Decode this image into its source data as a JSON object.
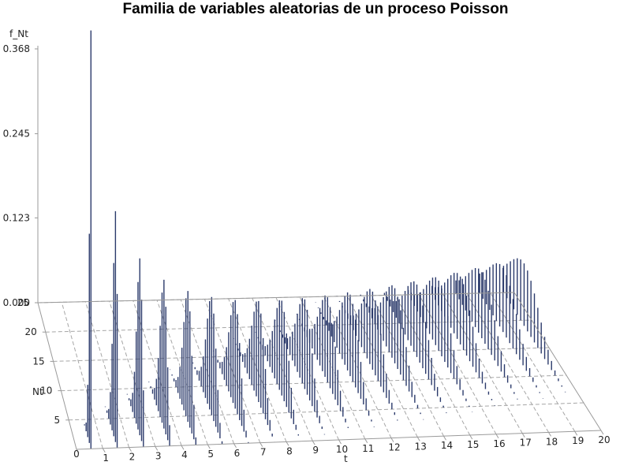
{
  "chart_data": {
    "type": "bar3d",
    "title": "Familia de variables aleatorias de un proceso Poisson",
    "xlabel": "t",
    "ylabel": "Nt",
    "zlabel": "f_Nt",
    "distribution": "Poisson",
    "t_range": [
      0,
      20
    ],
    "nt_range": [
      0,
      25
    ],
    "z_range": [
      0,
      0.368
    ],
    "x_ticks": [
      "0",
      "1",
      "2",
      "3",
      "4",
      "5",
      "6",
      "7",
      "8",
      "9",
      "10",
      "11",
      "12",
      "13",
      "14",
      "15",
      "16",
      "17",
      "18",
      "19",
      "20"
    ],
    "y_ticks": [
      "5",
      "10",
      "15",
      "20",
      "25"
    ],
    "z_ticks": [
      "0.000",
      "0.123",
      "0.245",
      "0.368"
    ],
    "grid": true,
    "bar_color": "#2b3a6b",
    "grid_color": "#a6a6a6"
  }
}
